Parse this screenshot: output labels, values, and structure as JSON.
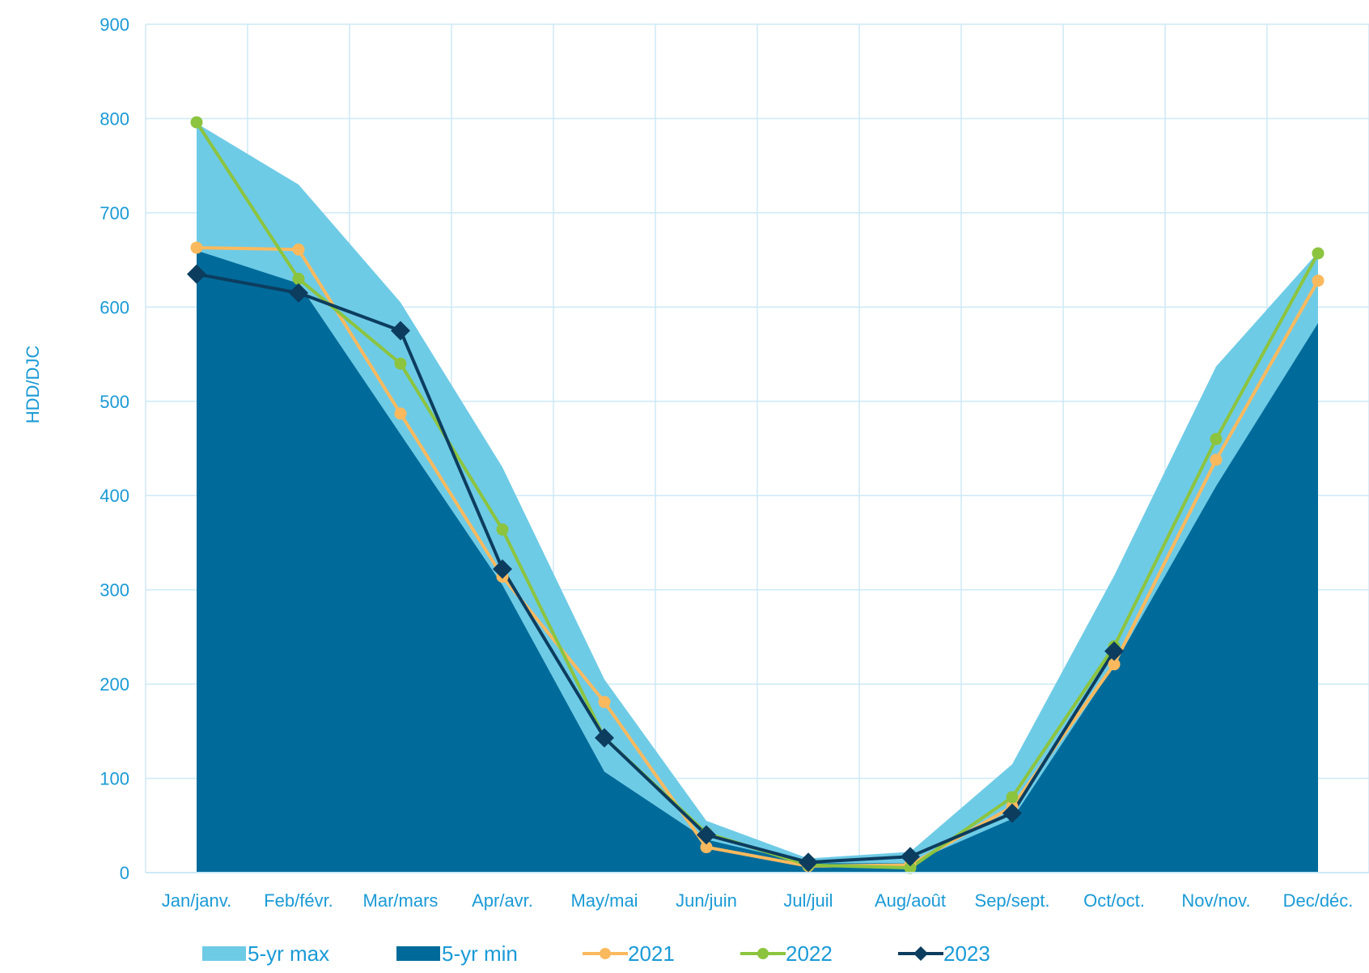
{
  "chart_data": {
    "type": "area",
    "ylabel": "HDD/DJC",
    "ylim": [
      0,
      900
    ],
    "yticks": [
      0,
      100,
      200,
      300,
      400,
      500,
      600,
      700,
      800,
      900
    ],
    "grid": true,
    "legend_position": "bottom",
    "categories": [
      "Jan/janv.",
      "Feb/févr.",
      "Mar/mars",
      "Apr/avr.",
      "May/mai",
      "Jun/juin",
      "Jul/juil",
      "Aug/août",
      "Sep/sept.",
      "Oct/oct.",
      "Nov/nov.",
      "Dec/déc."
    ],
    "series": [
      {
        "name": "5-yr max",
        "kind": "area",
        "color": "#6ecbe6",
        "values": [
          795,
          730,
          605,
          430,
          205,
          55,
          15,
          22,
          115,
          315,
          537,
          658
        ]
      },
      {
        "name": "5-yr min",
        "kind": "area",
        "color": "#006b9a",
        "values": [
          660,
          625,
          465,
          305,
          107,
          35,
          10,
          10,
          57,
          220,
          410,
          583
        ]
      },
      {
        "name": "2021",
        "kind": "line",
        "marker": "circle",
        "color": "#fbb95e",
        "values": [
          663,
          661,
          487,
          314,
          181,
          27,
          7,
          8,
          70,
          221,
          438,
          628
        ]
      },
      {
        "name": "2022",
        "kind": "line",
        "marker": "circle",
        "color": "#8cc43f",
        "values": [
          796,
          630,
          540,
          364,
          143,
          42,
          8,
          5,
          80,
          240,
          460,
          657
        ]
      },
      {
        "name": "2023",
        "kind": "line",
        "marker": "diamond",
        "color": "#0c3d5f",
        "values": [
          635,
          615,
          575,
          322,
          143,
          40,
          11,
          17,
          63,
          235,
          null,
          null
        ]
      }
    ]
  }
}
